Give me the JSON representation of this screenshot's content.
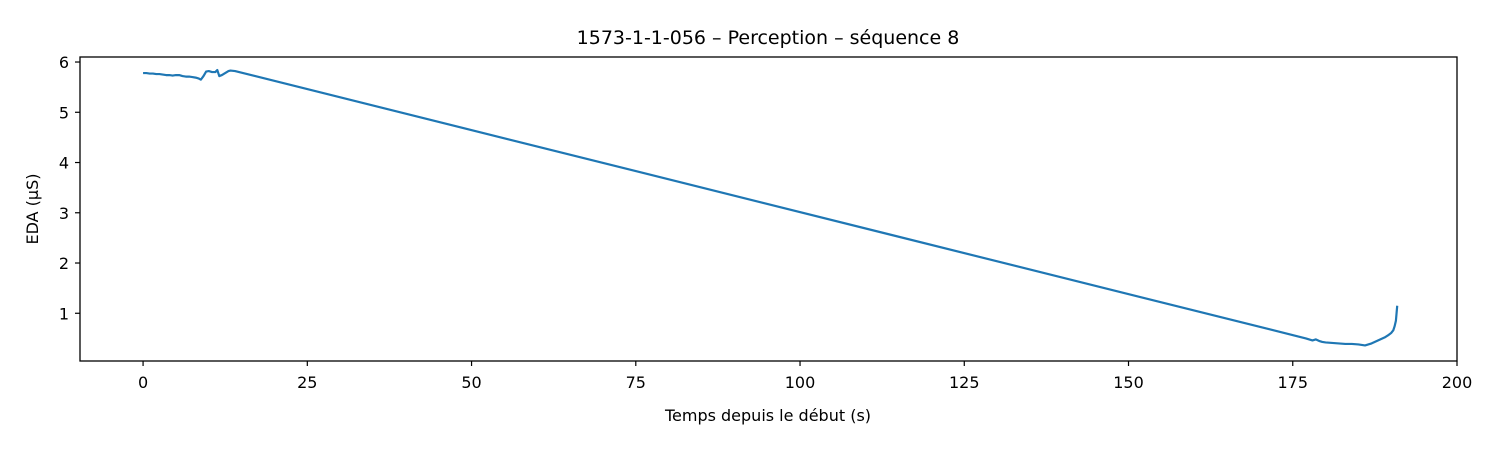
{
  "chart_data": {
    "type": "line",
    "title": "1573-1-1-056 – Perception – séquence 8",
    "xlabel": "Temps depuis le début (s)",
    "ylabel": "EDA (µS)",
    "xlim": [
      -9.6,
      200
    ],
    "ylim": [
      0.05,
      6.1
    ],
    "xticks": [
      0,
      25,
      50,
      75,
      100,
      125,
      150,
      175,
      200
    ],
    "xtick_labels": [
      "0",
      "25",
      "50",
      "75",
      "100",
      "125",
      "150",
      "175",
      "200"
    ],
    "yticks": [
      1,
      2,
      3,
      4,
      5,
      6
    ],
    "ytick_labels": [
      "1",
      "2",
      "3",
      "4",
      "5",
      "6"
    ],
    "grid": false,
    "series": [
      {
        "color": "#1f77b4",
        "x": [
          0,
          0.5,
          1.0,
          1.5,
          2.0,
          2.5,
          3.0,
          3.5,
          4.0,
          4.5,
          5.0,
          5.5,
          6.0,
          6.5,
          7.0,
          7.5,
          8.0,
          8.5,
          8.8,
          9.2,
          9.6,
          10.0,
          10.5,
          11.0,
          11.3,
          11.6,
          12.0,
          12.5,
          13.0,
          13.3,
          14.0,
          177.0,
          177.5,
          178.0,
          178.5,
          179.0,
          179.5,
          180.0,
          181.0,
          182.0,
          183.0,
          184.0,
          185.0,
          185.5,
          186.0,
          186.5,
          187.0,
          187.5,
          188.0,
          188.5,
          189.0,
          189.5,
          190.0,
          190.3,
          190.5,
          190.7,
          190.8,
          190.9
        ],
        "y": [
          5.78,
          5.78,
          5.77,
          5.77,
          5.76,
          5.76,
          5.75,
          5.74,
          5.74,
          5.73,
          5.74,
          5.74,
          5.72,
          5.71,
          5.71,
          5.7,
          5.69,
          5.67,
          5.65,
          5.72,
          5.81,
          5.82,
          5.8,
          5.8,
          5.84,
          5.72,
          5.74,
          5.78,
          5.82,
          5.83,
          5.82,
          0.5,
          0.48,
          0.46,
          0.48,
          0.45,
          0.43,
          0.42,
          0.41,
          0.4,
          0.39,
          0.39,
          0.38,
          0.37,
          0.36,
          0.38,
          0.4,
          0.43,
          0.46,
          0.49,
          0.52,
          0.56,
          0.61,
          0.66,
          0.74,
          0.85,
          1.0,
          1.15
        ]
      }
    ]
  }
}
